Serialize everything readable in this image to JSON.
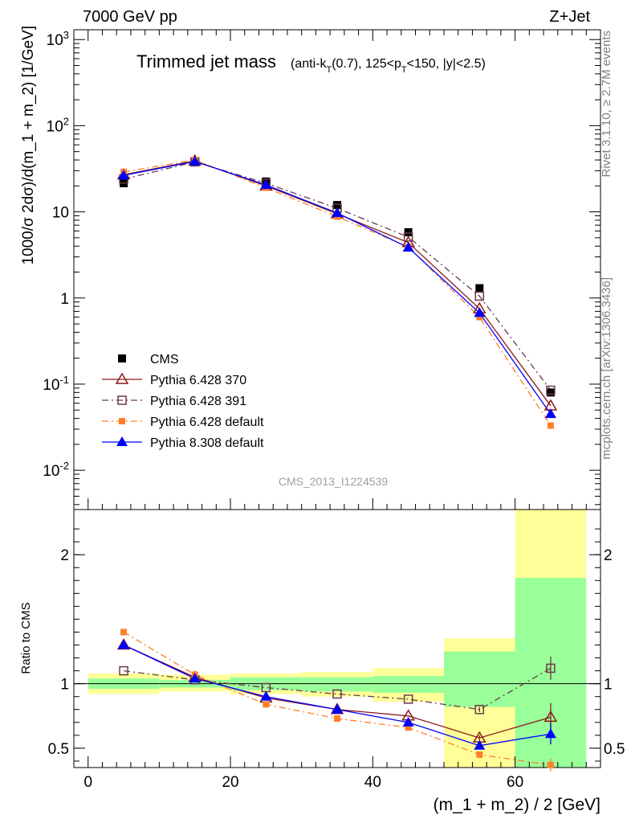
{
  "header": {
    "energy_label": "7000 GeV pp",
    "process_label": "Z+Jet"
  },
  "side_labels": {
    "rivet": "Rivet 3.1.10, ≥ 2.7M events",
    "mcplots": "mcplots.cern.ch [arXiv:1306.3436]"
  },
  "chart_data": [
    {
      "type": "line",
      "panel": "main",
      "title": "Trimmed jet mass",
      "subtitle": "(anti-k_T(0.7), 125<p_T<150, |y|<2.5)",
      "ylabel": "1000/σ 2dσ)/d(m_1 + m_2) [1/GeV]",
      "yscale": "log",
      "xlim": [
        -2,
        72
      ],
      "ylim": [
        0.0035,
        1300
      ],
      "x": [
        5,
        15,
        25,
        35,
        45,
        55,
        65
      ],
      "y_tick_labels": [
        "10^-2",
        "10^-1",
        "1",
        "10",
        "10^2",
        "10^3"
      ],
      "watermark": "CMS_2013_I1224539",
      "legend_position": "lower-left",
      "series": [
        {
          "name": "CMS",
          "marker": "square-filled",
          "color": "#000000",
          "values": [
            21.5,
            37.5,
            22.5,
            12.0,
            5.8,
            1.3,
            0.08
          ]
        },
        {
          "name": "Pythia 6.428 370",
          "marker": "triangle-open",
          "color": "#8b1a1a",
          "line": "solid",
          "values": [
            27,
            39,
            20,
            9.5,
            4.4,
            0.75,
            0.056
          ]
        },
        {
          "name": "Pythia 6.428 391",
          "marker": "square-open",
          "color": "#6b3a4a",
          "line": "dashdot",
          "values": [
            24,
            38,
            21.5,
            11,
            5.1,
            1.05,
            0.085
          ]
        },
        {
          "name": "Pythia 6.428 default",
          "marker": "square-filled-small",
          "color": "#ff7f2a",
          "line": "dashdot",
          "values": [
            29,
            40,
            19,
            8.8,
            3.9,
            0.6,
            0.033
          ]
        },
        {
          "name": "Pythia 8.308 default",
          "marker": "triangle-filled",
          "color": "#0000ff",
          "line": "solid",
          "values": [
            26.5,
            38.5,
            20.5,
            9.7,
            3.85,
            0.67,
            0.045
          ]
        }
      ]
    },
    {
      "type": "line",
      "panel": "ratio",
      "xlabel": "(m_1 + m_2) / 2 [GeV]",
      "ylabel": "Ratio to CMS",
      "xlim": [
        -2,
        72
      ],
      "ylim": [
        0.35,
        2.35
      ],
      "x_ticks": [
        0,
        20,
        40,
        60
      ],
      "y_ticks": [
        0.5,
        1,
        2
      ],
      "reference_line": 1,
      "bands": {
        "bins": [
          [
            0,
            10
          ],
          [
            10,
            20
          ],
          [
            20,
            30
          ],
          [
            30,
            40
          ],
          [
            40,
            50
          ],
          [
            50,
            60
          ],
          [
            60,
            70
          ]
        ],
        "yellow": [
          [
            0.92,
            1.08
          ],
          [
            0.94,
            1.07
          ],
          [
            0.92,
            1.08
          ],
          [
            0.9,
            1.09
          ],
          [
            0.86,
            1.12
          ],
          [
            0.35,
            1.35
          ],
          [
            0.35,
            2.35
          ]
        ],
        "green": [
          [
            0.96,
            1.04
          ],
          [
            0.97,
            1.03
          ],
          [
            0.95,
            1.05
          ],
          [
            0.94,
            1.05
          ],
          [
            0.93,
            1.06
          ],
          [
            0.82,
            1.25
          ],
          [
            0.35,
            1.82
          ]
        ],
        "yellow_color": "#ffff99",
        "green_color": "#99ff99"
      },
      "series": [
        {
          "name": "Pythia 6.428 370",
          "marker": "triangle-open",
          "color": "#8b1a1a",
          "line": "solid",
          "values": [
            1.3,
            1.05,
            0.89,
            0.8,
            0.75,
            0.58,
            0.74
          ],
          "errors": [
            0,
            0,
            0,
            0,
            0,
            0.02,
            0.11
          ]
        },
        {
          "name": "Pythia 6.428 391",
          "marker": "square-open",
          "color": "#6b3a4a",
          "line": "dashdot",
          "values": [
            1.1,
            1.03,
            0.97,
            0.92,
            0.88,
            0.8,
            1.12
          ],
          "errors": [
            0,
            0,
            0,
            0,
            0,
            0.02,
            0.09
          ]
        },
        {
          "name": "Pythia 6.428 default",
          "marker": "square-filled-small",
          "color": "#ff7f2a",
          "line": "dashdot",
          "values": [
            1.4,
            1.07,
            0.84,
            0.73,
            0.66,
            0.45,
            0.37
          ],
          "errors": [
            0,
            0,
            0,
            0,
            0,
            0.02,
            0.05
          ]
        },
        {
          "name": "Pythia 8.308 default",
          "marker": "triangle-filled",
          "color": "#0000ff",
          "line": "solid",
          "values": [
            1.3,
            1.04,
            0.9,
            0.8,
            0.7,
            0.52,
            0.61
          ],
          "errors": [
            0,
            0,
            0,
            0,
            0,
            0.02,
            0.08
          ]
        }
      ]
    }
  ]
}
